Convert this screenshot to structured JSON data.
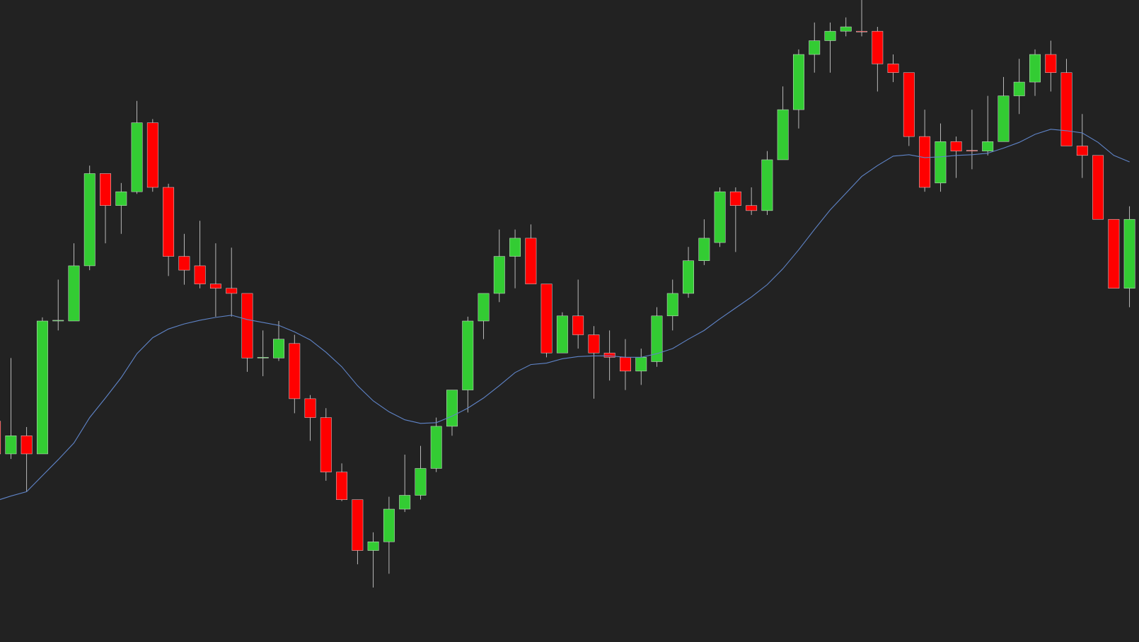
{
  "chart_data": {
    "type": "candlestick",
    "ylim": [
      0,
      884
    ],
    "up_color": "#33cc33",
    "down_color": "#ff0000",
    "wick_color": "#dddddd",
    "open": [
      304,
      259,
      284,
      259,
      442,
      442,
      518,
      645,
      601,
      620,
      715,
      626,
      531,
      518,
      493,
      487,
      480,
      391,
      391,
      411,
      335,
      309,
      234,
      196,
      126,
      138,
      183,
      202,
      239,
      297,
      347,
      442,
      480,
      531,
      556,
      493,
      398,
      449,
      423,
      398,
      392,
      373,
      386,
      449,
      480,
      525,
      550,
      620,
      601,
      594,
      664,
      733,
      809,
      828,
      841,
      841,
      841,
      796,
      784,
      696,
      632,
      689,
      677,
      676,
      689,
      752,
      771,
      809,
      784,
      683,
      670,
      582,
      487
    ],
    "high": [
      309,
      391,
      296,
      447,
      499,
      549,
      656,
      645,
      632,
      745,
      720,
      631,
      562,
      580,
      549,
      543,
      480,
      429,
      442,
      423,
      340,
      322,
      246,
      196,
      151,
      200,
      258,
      270,
      309,
      347,
      448,
      480,
      568,
      568,
      575,
      493,
      454,
      499,
      435,
      429,
      417,
      404,
      461,
      499,
      544,
      582,
      626,
      626,
      626,
      676,
      765,
      816,
      853,
      853,
      860,
      884,
      847,
      809,
      784,
      733,
      714,
      696,
      733,
      752,
      778,
      803,
      816,
      828,
      803,
      727,
      670,
      582,
      600
    ],
    "low": [
      254,
      252,
      207,
      259,
      429,
      442,
      512,
      549,
      562,
      617,
      620,
      504,
      492,
      487,
      448,
      448,
      372,
      366,
      387,
      315,
      277,
      222,
      194,
      107,
      75,
      94,
      179,
      196,
      234,
      284,
      316,
      417,
      468,
      487,
      493,
      392,
      398,
      404,
      335,
      360,
      347,
      354,
      379,
      429,
      474,
      519,
      544,
      537,
      588,
      588,
      664,
      707,
      784,
      784,
      834,
      834,
      758,
      771,
      683,
      620,
      620,
      639,
      651,
      670,
      689,
      727,
      752,
      758,
      683,
      639,
      582,
      487,
      461
    ],
    "close": [
      259,
      284,
      259,
      442,
      443,
      518,
      645,
      601,
      620,
      715,
      626,
      531,
      512,
      493,
      487,
      480,
      391,
      392,
      417,
      335,
      309,
      234,
      196,
      126,
      138,
      183,
      202,
      239,
      297,
      347,
      442,
      480,
      531,
      556,
      493,
      398,
      449,
      423,
      398,
      392,
      373,
      392,
      449,
      480,
      525,
      556,
      620,
      601,
      594,
      664,
      733,
      809,
      828,
      841,
      847,
      840,
      796,
      784,
      696,
      626,
      689,
      676,
      676,
      689,
      752,
      771,
      809,
      784,
      683,
      670,
      582,
      487,
      582
    ],
    "moving_average": {
      "color": "#5f84c8",
      "values": [
        194,
        201,
        207,
        229,
        251,
        274,
        309,
        336,
        364,
        397,
        419,
        431,
        438,
        443,
        447,
        450,
        444,
        440,
        436,
        427,
        416,
        399,
        379,
        353,
        332,
        317,
        306,
        301,
        302,
        311,
        322,
        336,
        353,
        371,
        382,
        384,
        390,
        393,
        394,
        394,
        392,
        392,
        397,
        404,
        417,
        429,
        445,
        460,
        475,
        492,
        514,
        540,
        568,
        595,
        618,
        641,
        656,
        669,
        671,
        667,
        668,
        670,
        671,
        673,
        680,
        688,
        699,
        706,
        704,
        701,
        688,
        670,
        661
      ]
    }
  }
}
